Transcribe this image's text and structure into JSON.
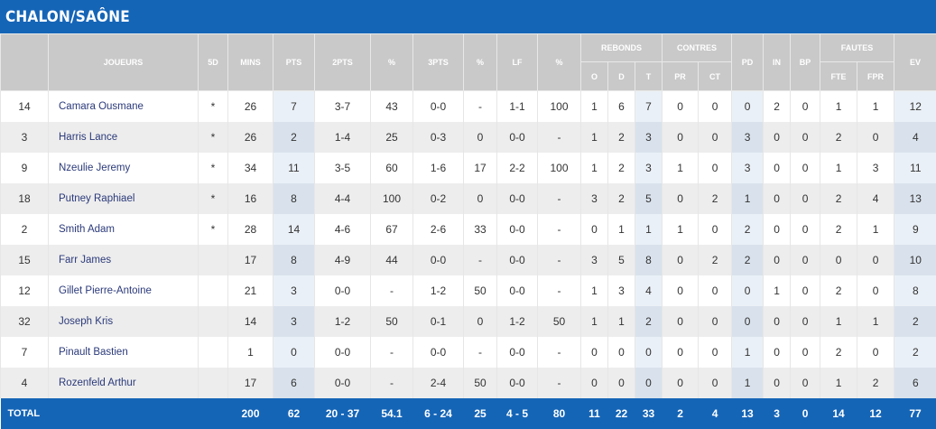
{
  "team": "CHALON/SAÔNE",
  "headers": {
    "joueurs": "JOUEURS",
    "5d": "5D",
    "mins": "MINS",
    "pts": "PTS",
    "2pts": "2PTS",
    "pct": "%",
    "3pts": "3PTS",
    "lf": "LF",
    "rebonds": "REBONDS",
    "o": "O",
    "d": "D",
    "t": "T",
    "contres": "CONTRES",
    "pr": "PR",
    "ct": "CT",
    "pd": "PD",
    "in": "IN",
    "bp": "BP",
    "fautes": "FAUTES",
    "fte": "FTE",
    "fpr": "FPR",
    "ev": "EV"
  },
  "players": [
    {
      "num": "14",
      "name": "Camara Ousmane",
      "starter": "*",
      "mins": "26",
      "pts": "7",
      "two": "3-7",
      "two_pct": "43",
      "three": "0-0",
      "three_pct": "-",
      "lf": "1-1",
      "lf_pct": "100",
      "ro": "1",
      "rd": "6",
      "rt": "7",
      "pr": "0",
      "ct": "0",
      "pd": "0",
      "in": "2",
      "bp": "0",
      "fte": "1",
      "fpr": "1",
      "ev": "12"
    },
    {
      "num": "3",
      "name": "Harris Lance",
      "starter": "*",
      "mins": "26",
      "pts": "2",
      "two": "1-4",
      "two_pct": "25",
      "three": "0-3",
      "three_pct": "0",
      "lf": "0-0",
      "lf_pct": "-",
      "ro": "1",
      "rd": "2",
      "rt": "3",
      "pr": "0",
      "ct": "0",
      "pd": "3",
      "in": "0",
      "bp": "0",
      "fte": "2",
      "fpr": "0",
      "ev": "4"
    },
    {
      "num": "9",
      "name": "Nzeulie Jeremy",
      "starter": "*",
      "mins": "34",
      "pts": "11",
      "two": "3-5",
      "two_pct": "60",
      "three": "1-6",
      "three_pct": "17",
      "lf": "2-2",
      "lf_pct": "100",
      "ro": "1",
      "rd": "2",
      "rt": "3",
      "pr": "1",
      "ct": "0",
      "pd": "3",
      "in": "0",
      "bp": "0",
      "fte": "1",
      "fpr": "3",
      "ev": "11"
    },
    {
      "num": "18",
      "name": "Putney Raphiael",
      "starter": "*",
      "mins": "16",
      "pts": "8",
      "two": "4-4",
      "two_pct": "100",
      "three": "0-2",
      "three_pct": "0",
      "lf": "0-0",
      "lf_pct": "-",
      "ro": "3",
      "rd": "2",
      "rt": "5",
      "pr": "0",
      "ct": "2",
      "pd": "1",
      "in": "0",
      "bp": "0",
      "fte": "2",
      "fpr": "4",
      "ev": "13"
    },
    {
      "num": "2",
      "name": "Smith Adam",
      "starter": "*",
      "mins": "28",
      "pts": "14",
      "two": "4-6",
      "two_pct": "67",
      "three": "2-6",
      "three_pct": "33",
      "lf": "0-0",
      "lf_pct": "-",
      "ro": "0",
      "rd": "1",
      "rt": "1",
      "pr": "1",
      "ct": "0",
      "pd": "2",
      "in": "0",
      "bp": "0",
      "fte": "2",
      "fpr": "1",
      "ev": "9"
    },
    {
      "num": "15",
      "name": "Farr James",
      "starter": "",
      "mins": "17",
      "pts": "8",
      "two": "4-9",
      "two_pct": "44",
      "three": "0-0",
      "three_pct": "-",
      "lf": "0-0",
      "lf_pct": "-",
      "ro": "3",
      "rd": "5",
      "rt": "8",
      "pr": "0",
      "ct": "2",
      "pd": "2",
      "in": "0",
      "bp": "0",
      "fte": "0",
      "fpr": "0",
      "ev": "10"
    },
    {
      "num": "12",
      "name": "Gillet Pierre-Antoine",
      "starter": "",
      "mins": "21",
      "pts": "3",
      "two": "0-0",
      "two_pct": "-",
      "three": "1-2",
      "three_pct": "50",
      "lf": "0-0",
      "lf_pct": "-",
      "ro": "1",
      "rd": "3",
      "rt": "4",
      "pr": "0",
      "ct": "0",
      "pd": "0",
      "in": "1",
      "bp": "0",
      "fte": "2",
      "fpr": "0",
      "ev": "8"
    },
    {
      "num": "32",
      "name": "Joseph Kris",
      "starter": "",
      "mins": "14",
      "pts": "3",
      "two": "1-2",
      "two_pct": "50",
      "three": "0-1",
      "three_pct": "0",
      "lf": "1-2",
      "lf_pct": "50",
      "ro": "1",
      "rd": "1",
      "rt": "2",
      "pr": "0",
      "ct": "0",
      "pd": "0",
      "in": "0",
      "bp": "0",
      "fte": "1",
      "fpr": "1",
      "ev": "2"
    },
    {
      "num": "7",
      "name": "Pinault Bastien",
      "starter": "",
      "mins": "1",
      "pts": "0",
      "two": "0-0",
      "two_pct": "-",
      "three": "0-0",
      "three_pct": "-",
      "lf": "0-0",
      "lf_pct": "-",
      "ro": "0",
      "rd": "0",
      "rt": "0",
      "pr": "0",
      "ct": "0",
      "pd": "1",
      "in": "0",
      "bp": "0",
      "fte": "2",
      "fpr": "0",
      "ev": "2"
    },
    {
      "num": "4",
      "name": "Rozenfeld Arthur",
      "starter": "",
      "mins": "17",
      "pts": "6",
      "two": "0-0",
      "two_pct": "-",
      "three": "2-4",
      "three_pct": "50",
      "lf": "0-0",
      "lf_pct": "-",
      "ro": "0",
      "rd": "0",
      "rt": "0",
      "pr": "0",
      "ct": "0",
      "pd": "1",
      "in": "0",
      "bp": "0",
      "fte": "1",
      "fpr": "2",
      "ev": "6"
    }
  ],
  "total": {
    "label": "TOTAL",
    "mins": "200",
    "pts": "62",
    "two": "20 - 37",
    "two_pct": "54.1",
    "three": "6 - 24",
    "three_pct": "25",
    "lf": "4 - 5",
    "lf_pct": "80",
    "ro": "11",
    "rd": "22",
    "rt": "33",
    "pr": "2",
    "ct": "4",
    "pd": "13",
    "in": "3",
    "bp": "0",
    "fte": "14",
    "fpr": "12",
    "ev": "77"
  }
}
